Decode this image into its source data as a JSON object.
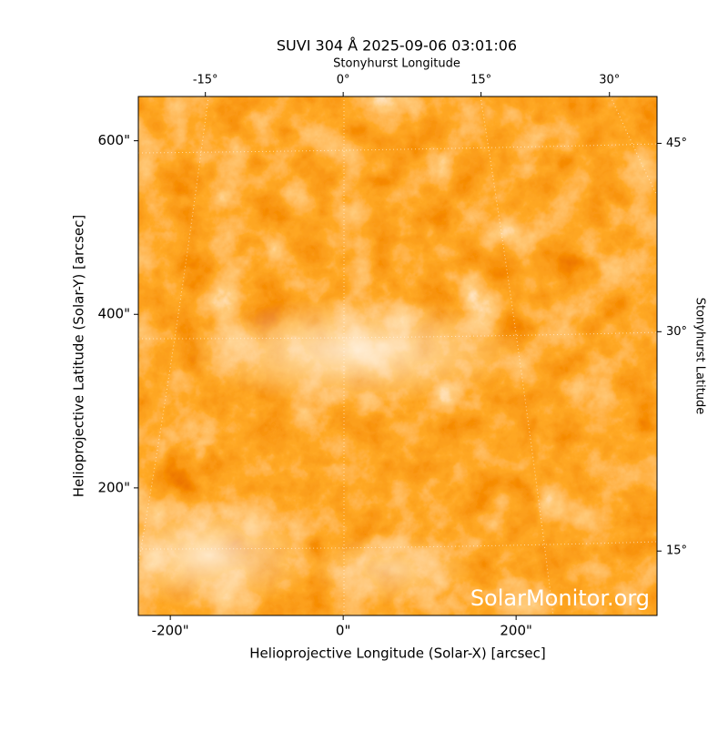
{
  "chart_data": {
    "type": "image",
    "title": "SUVI 304 Å 2025-09-06 03:01:06",
    "xlabel": "Helioprojective Longitude (Solar-X) [arcsec]",
    "ylabel": "Helioprojective Latitude (Solar-Y) [arcsec]",
    "x2label": "Stonyhurst Longitude",
    "y2label": "Stonyhurst Latitude",
    "xlim": [
      -237,
      363
    ],
    "ylim": [
      53,
      651
    ],
    "xticks": [
      {
        "value": -200,
        "label": "-200\""
      },
      {
        "value": 0,
        "label": "0\""
      },
      {
        "value": 200,
        "label": "200\""
      }
    ],
    "yticks": [
      {
        "value": 200,
        "label": "200\""
      },
      {
        "value": 400,
        "label": "400\""
      },
      {
        "value": 600,
        "label": "600\""
      }
    ],
    "x2ticks": [
      {
        "value": -15,
        "label": "-15°"
      },
      {
        "value": 0,
        "label": "0°"
      },
      {
        "value": 15,
        "label": "15°"
      },
      {
        "value": 30,
        "label": "30°"
      }
    ],
    "y2ticks": [
      {
        "value": 15,
        "label": "15°"
      },
      {
        "value": 30,
        "label": "30°"
      },
      {
        "value": 45,
        "label": "45°"
      }
    ],
    "watermark": "SolarMonitor.org"
  }
}
